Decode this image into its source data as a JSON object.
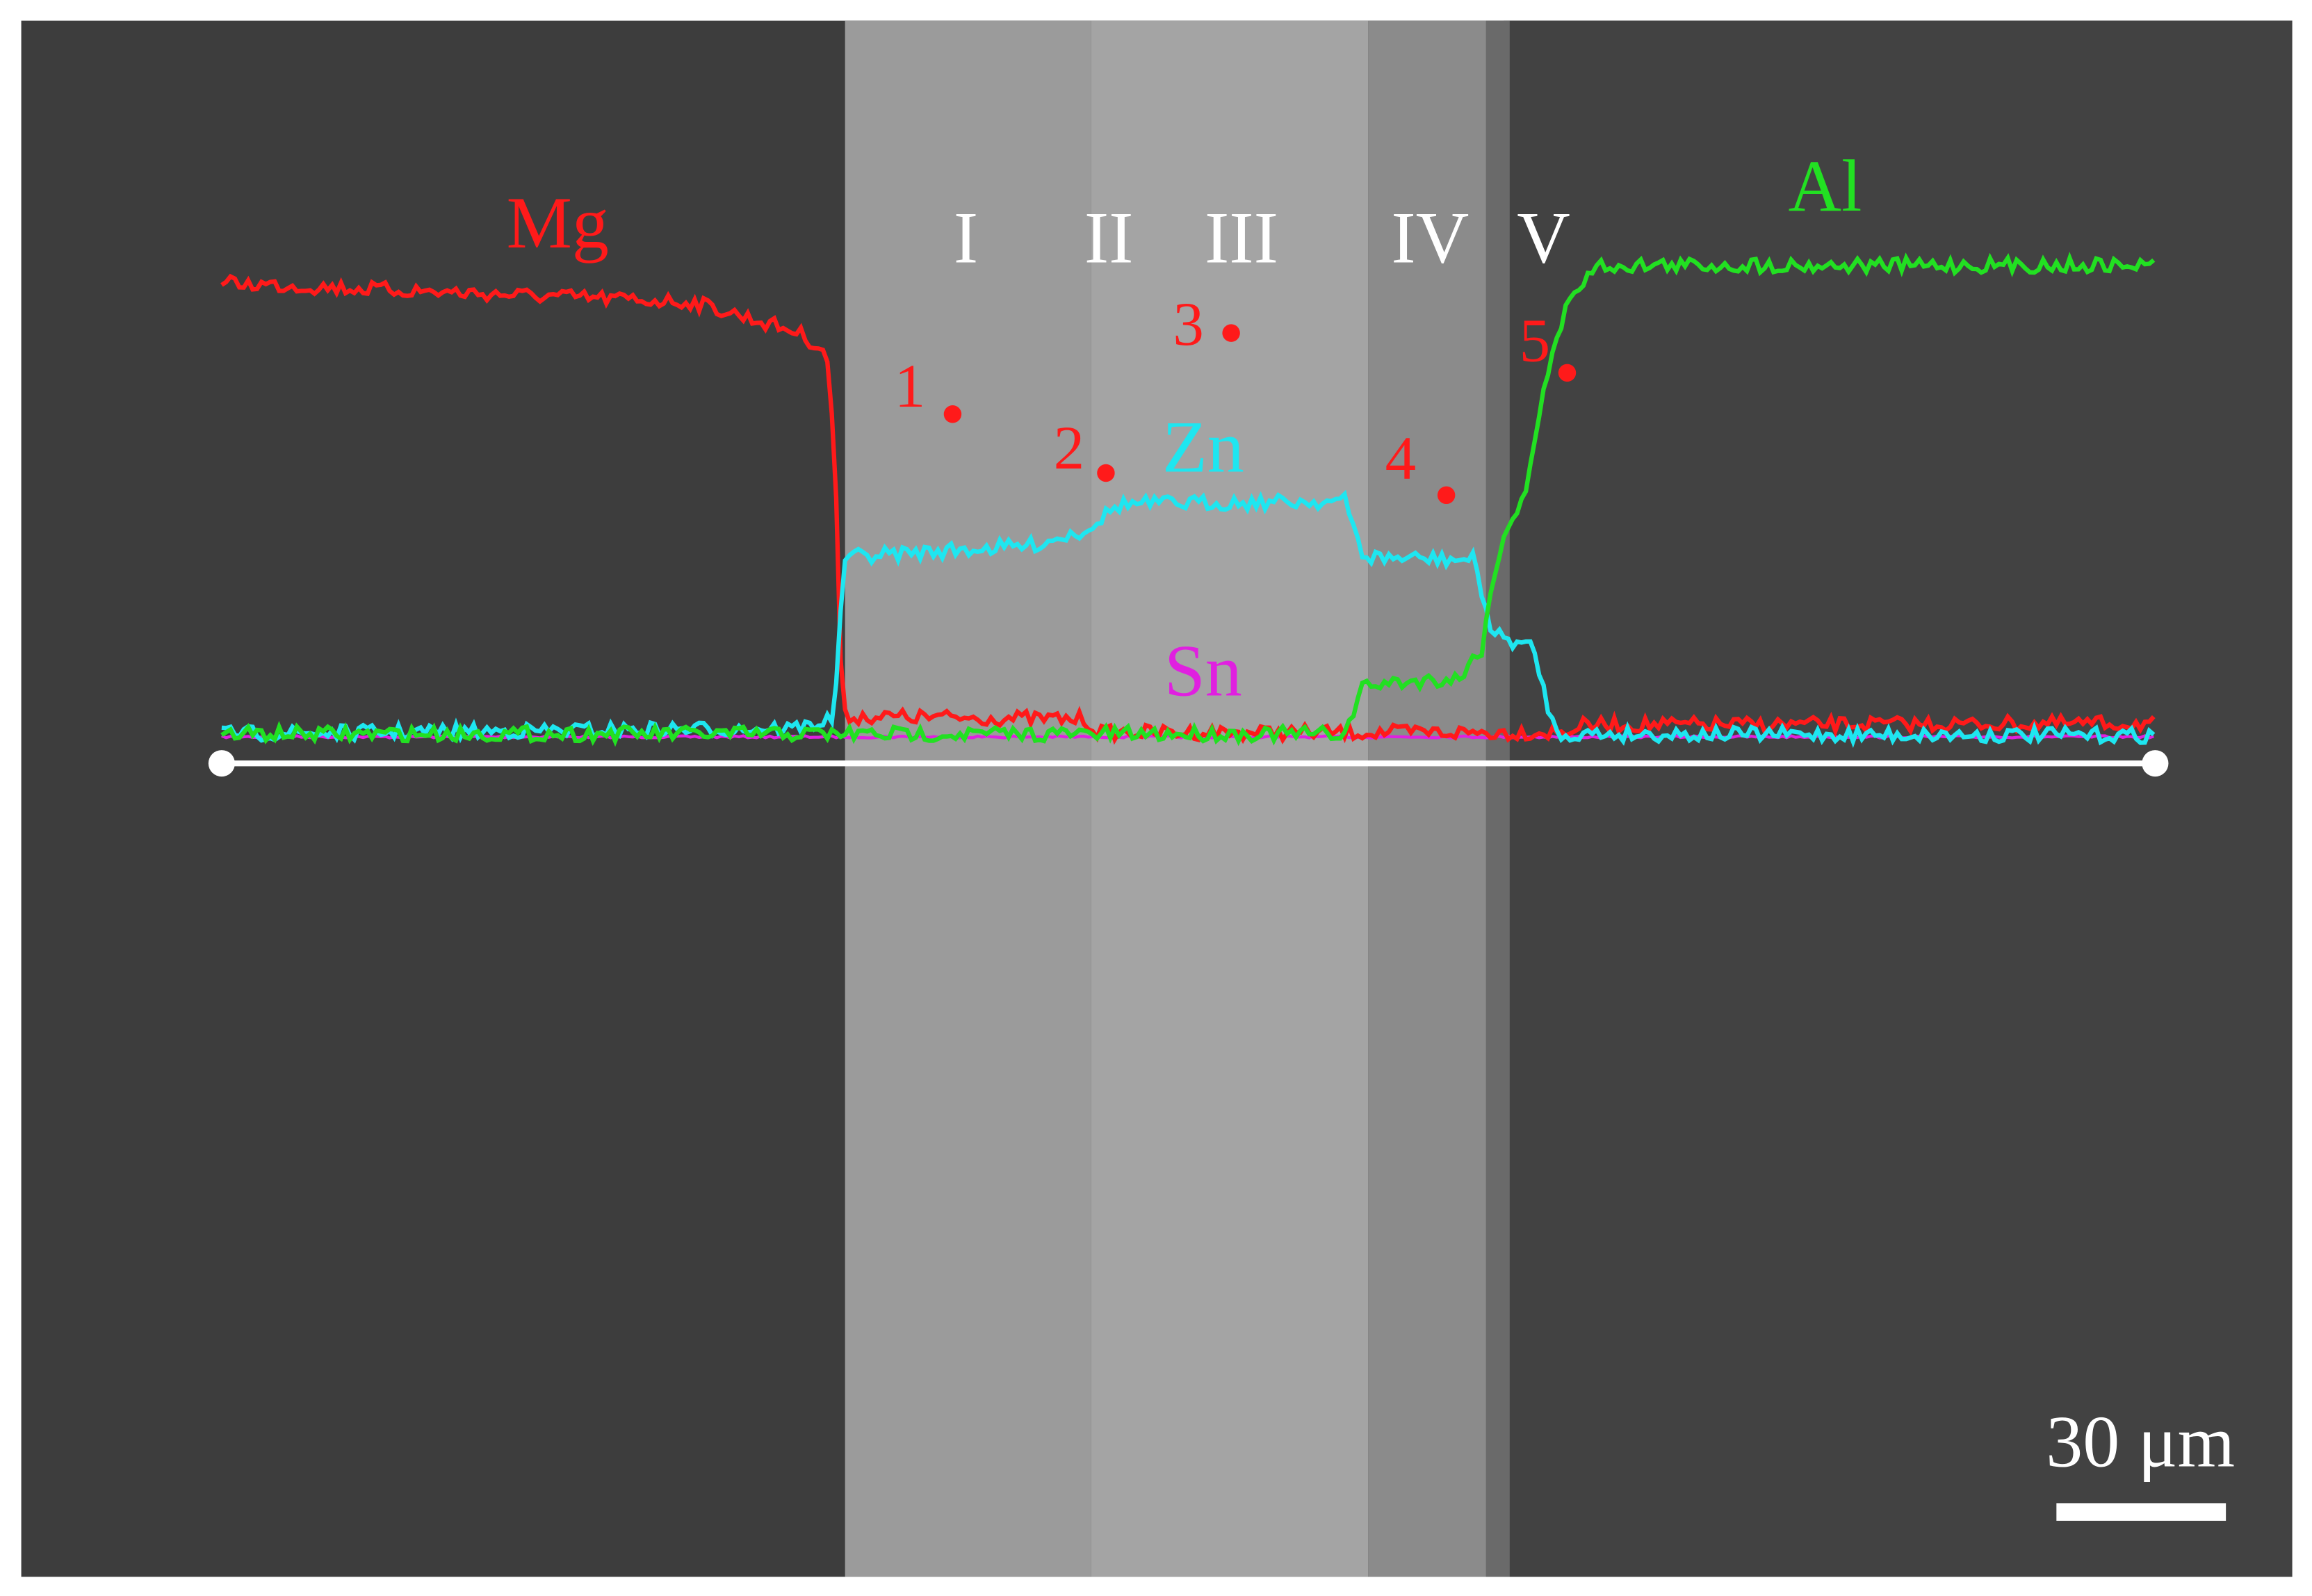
{
  "labels": {
    "elements": {
      "mg": "Mg",
      "zn": "Zn",
      "sn": "Sn",
      "al": "Al"
    },
    "zones": [
      "I",
      "II",
      "III",
      "IV",
      "V"
    ],
    "points": [
      "1",
      "2",
      "3",
      "4",
      "5"
    ],
    "scale_bar": "30 μm"
  }
}
